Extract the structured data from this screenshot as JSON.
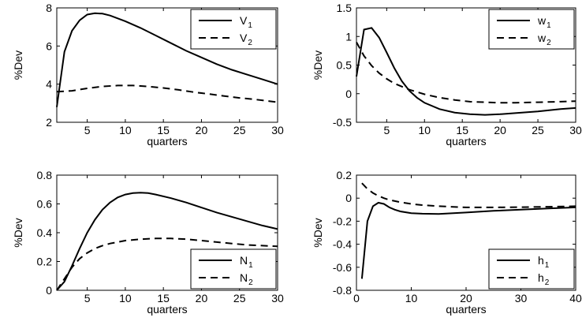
{
  "chart_data": [
    {
      "type": "line",
      "xlabel": "quarters",
      "ylabel": "%Dev",
      "xlim": [
        1,
        30
      ],
      "ylim": [
        2,
        8
      ],
      "xticks": [
        5,
        10,
        15,
        20,
        25,
        30
      ],
      "yticks": [
        2,
        4,
        6,
        8
      ],
      "legend_position": "top-right",
      "grid": false,
      "series": [
        {
          "name": "V",
          "subscript": "1",
          "style": "solid",
          "x": [
            1,
            2,
            3,
            4,
            5,
            6,
            7,
            8,
            10,
            12,
            14,
            16,
            18,
            20,
            22,
            24,
            26,
            28,
            30
          ],
          "values": [
            2.8,
            5.7,
            6.8,
            7.35,
            7.65,
            7.72,
            7.7,
            7.6,
            7.3,
            6.95,
            6.55,
            6.15,
            5.75,
            5.4,
            5.05,
            4.75,
            4.5,
            4.25,
            4.0
          ]
        },
        {
          "name": "V",
          "subscript": "2",
          "style": "dashed",
          "x": [
            1,
            3,
            5,
            7,
            9,
            11,
            13,
            15,
            17,
            19,
            21,
            23,
            25,
            27,
            30
          ],
          "values": [
            3.6,
            3.65,
            3.78,
            3.88,
            3.93,
            3.93,
            3.88,
            3.8,
            3.7,
            3.58,
            3.48,
            3.38,
            3.28,
            3.2,
            3.05
          ]
        }
      ]
    },
    {
      "type": "line",
      "xlabel": "quarters",
      "ylabel": "%Dev",
      "xlim": [
        1,
        30
      ],
      "ylim": [
        -0.5,
        1.5
      ],
      "xticks": [
        5,
        10,
        15,
        20,
        25,
        30
      ],
      "yticks": [
        -0.5,
        0,
        0.5,
        1,
        1.5
      ],
      "legend_position": "top-right",
      "grid": false,
      "series": [
        {
          "name": "w",
          "subscript": "1",
          "style": "solid",
          "x": [
            1,
            2,
            3,
            4,
            5,
            6,
            7,
            8,
            9,
            10,
            12,
            14,
            16,
            18,
            20,
            22,
            25,
            28,
            30
          ],
          "values": [
            0.3,
            1.12,
            1.15,
            0.98,
            0.72,
            0.45,
            0.22,
            0.05,
            -0.07,
            -0.16,
            -0.27,
            -0.33,
            -0.36,
            -0.37,
            -0.36,
            -0.34,
            -0.31,
            -0.27,
            -0.25
          ]
        },
        {
          "name": "w",
          "subscript": "2",
          "style": "dashed",
          "x": [
            1,
            2,
            3,
            4,
            5,
            6,
            8,
            10,
            12,
            14,
            16,
            18,
            20,
            22,
            25,
            28,
            30
          ],
          "values": [
            0.9,
            0.66,
            0.49,
            0.36,
            0.26,
            0.18,
            0.07,
            -0.01,
            -0.07,
            -0.11,
            -0.14,
            -0.15,
            -0.16,
            -0.16,
            -0.15,
            -0.14,
            -0.13
          ]
        }
      ]
    },
    {
      "type": "line",
      "xlabel": "quarters",
      "ylabel": "%Dev",
      "xlim": [
        1,
        30
      ],
      "ylim": [
        0,
        0.8
      ],
      "xticks": [
        5,
        10,
        15,
        20,
        25,
        30
      ],
      "yticks": [
        0,
        0.2,
        0.4,
        0.6,
        0.8
      ],
      "legend_position": "bottom-right",
      "grid": false,
      "series": [
        {
          "name": "N",
          "subscript": "1",
          "style": "solid",
          "x": [
            1,
            2,
            3,
            4,
            5,
            6,
            7,
            8,
            9,
            10,
            11,
            12,
            13,
            14,
            16,
            18,
            20,
            22,
            24,
            26,
            28,
            30
          ],
          "values": [
            0.0,
            0.06,
            0.17,
            0.29,
            0.4,
            0.49,
            0.56,
            0.61,
            0.645,
            0.665,
            0.675,
            0.678,
            0.675,
            0.665,
            0.64,
            0.61,
            0.575,
            0.54,
            0.51,
            0.48,
            0.45,
            0.425
          ]
        },
        {
          "name": "N",
          "subscript": "2",
          "style": "dashed",
          "x": [
            1,
            2,
            3,
            4,
            5,
            6,
            7,
            8,
            10,
            12,
            14,
            16,
            18,
            20,
            22,
            24,
            26,
            28,
            30
          ],
          "values": [
            0.0,
            0.08,
            0.16,
            0.22,
            0.26,
            0.29,
            0.31,
            0.325,
            0.345,
            0.355,
            0.36,
            0.36,
            0.355,
            0.345,
            0.335,
            0.325,
            0.315,
            0.31,
            0.305
          ]
        }
      ]
    },
    {
      "type": "line",
      "xlabel": "quarters",
      "ylabel": "%Dev",
      "xlim": [
        0,
        40
      ],
      "ylim": [
        -0.8,
        0.2
      ],
      "xticks": [
        0,
        10,
        20,
        30,
        40
      ],
      "yticks": [
        -0.8,
        -0.6,
        -0.4,
        -0.2,
        0,
        0.2
      ],
      "legend_position": "bottom-right",
      "grid": false,
      "series": [
        {
          "name": "h",
          "subscript": "1",
          "style": "solid",
          "x": [
            1,
            2,
            3,
            4,
            5,
            6,
            7,
            8,
            10,
            12,
            15,
            20,
            25,
            30,
            35,
            40
          ],
          "values": [
            -0.7,
            -0.2,
            -0.07,
            -0.04,
            -0.05,
            -0.08,
            -0.1,
            -0.115,
            -0.13,
            -0.135,
            -0.138,
            -0.125,
            -0.11,
            -0.1,
            -0.09,
            -0.08
          ]
        },
        {
          "name": "h",
          "subscript": "2",
          "style": "dashed",
          "x": [
            1,
            2,
            3,
            4,
            5,
            6,
            8,
            10,
            12,
            15,
            20,
            25,
            30,
            35,
            40
          ],
          "values": [
            0.13,
            0.08,
            0.045,
            0.02,
            0.0,
            -0.015,
            -0.035,
            -0.05,
            -0.06,
            -0.07,
            -0.08,
            -0.08,
            -0.078,
            -0.075,
            -0.07
          ]
        }
      ]
    }
  ]
}
